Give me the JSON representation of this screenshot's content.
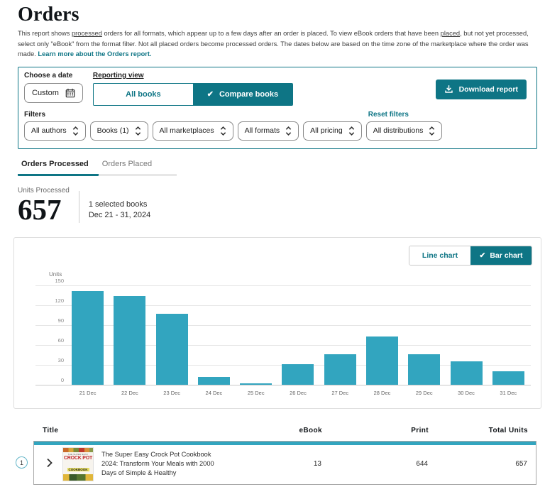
{
  "page": {
    "title": "Orders",
    "intro": {
      "part1": "This report shows ",
      "underline1": "processed",
      "part2": " orders for all formats, which appear up to a few days after an order is placed. To view eBook orders that have been ",
      "underline2": "placed",
      "part3": ", but not yet processed, select only \"eBook\" from the format filter. Not all placed orders become processed orders. The dates below are based on the time zone of the marketplace where the order was made. ",
      "link": "Learn more about the Orders report."
    }
  },
  "icons": {
    "check": "✔"
  },
  "filter_panel": {
    "date_label": "Choose a date",
    "date_value": "Custom",
    "reporting_view_label": "Reporting view",
    "view_options": [
      {
        "label": "All books",
        "selected": false
      },
      {
        "label": "Compare books",
        "selected": true
      }
    ],
    "download_button": "Download report",
    "filters_label": "Filters",
    "reset_link": "Reset filters",
    "filters": [
      "All authors",
      "Books (1)",
      "All marketplaces",
      "All formats",
      "All pricing",
      "All distributions"
    ]
  },
  "tabs": [
    {
      "label": "Orders Processed",
      "active": true
    },
    {
      "label": "Orders Placed",
      "active": false
    }
  ],
  "summary": {
    "label": "Units Processed",
    "value": "657",
    "selection": "1 selected books",
    "date_range": "Dec 21 - 31, 2024"
  },
  "chart_toggle": [
    {
      "label": "Line chart",
      "selected": false
    },
    {
      "label": "Bar chart",
      "selected": true
    }
  ],
  "chart_data": {
    "type": "bar",
    "title": "",
    "xlabel": "",
    "ylabel": "Units",
    "categories": [
      "21 Dec",
      "22 Dec",
      "23 Dec",
      "24 Dec",
      "25 Dec",
      "26 Dec",
      "27 Dec",
      "28 Dec",
      "29 Dec",
      "30 Dec",
      "31 Dec"
    ],
    "values": [
      141,
      133,
      107,
      11,
      2,
      31,
      46,
      72,
      46,
      35,
      20
    ],
    "yticks": [
      0,
      30,
      60,
      90,
      120,
      150
    ],
    "ylim": [
      0,
      150
    ],
    "grid": true,
    "legend": "none",
    "bar_color": "#32a5bf"
  },
  "table": {
    "headers": [
      "Title",
      "eBook",
      "Print",
      "Total Units"
    ],
    "rows": [
      {
        "index": "1",
        "title": "The Super Easy Crock Pot Cookbook 2024: Transform Your Meals with 2000 Days of Simple & Healthy",
        "cover_lines": [
          "THE SUPER EASY",
          "CROCK POT",
          "COOKBOOK"
        ],
        "ebook": "13",
        "print": "644",
        "total": "657"
      }
    ]
  },
  "colors": {
    "teal": "#0e7585",
    "bar": "#32a5bf"
  }
}
